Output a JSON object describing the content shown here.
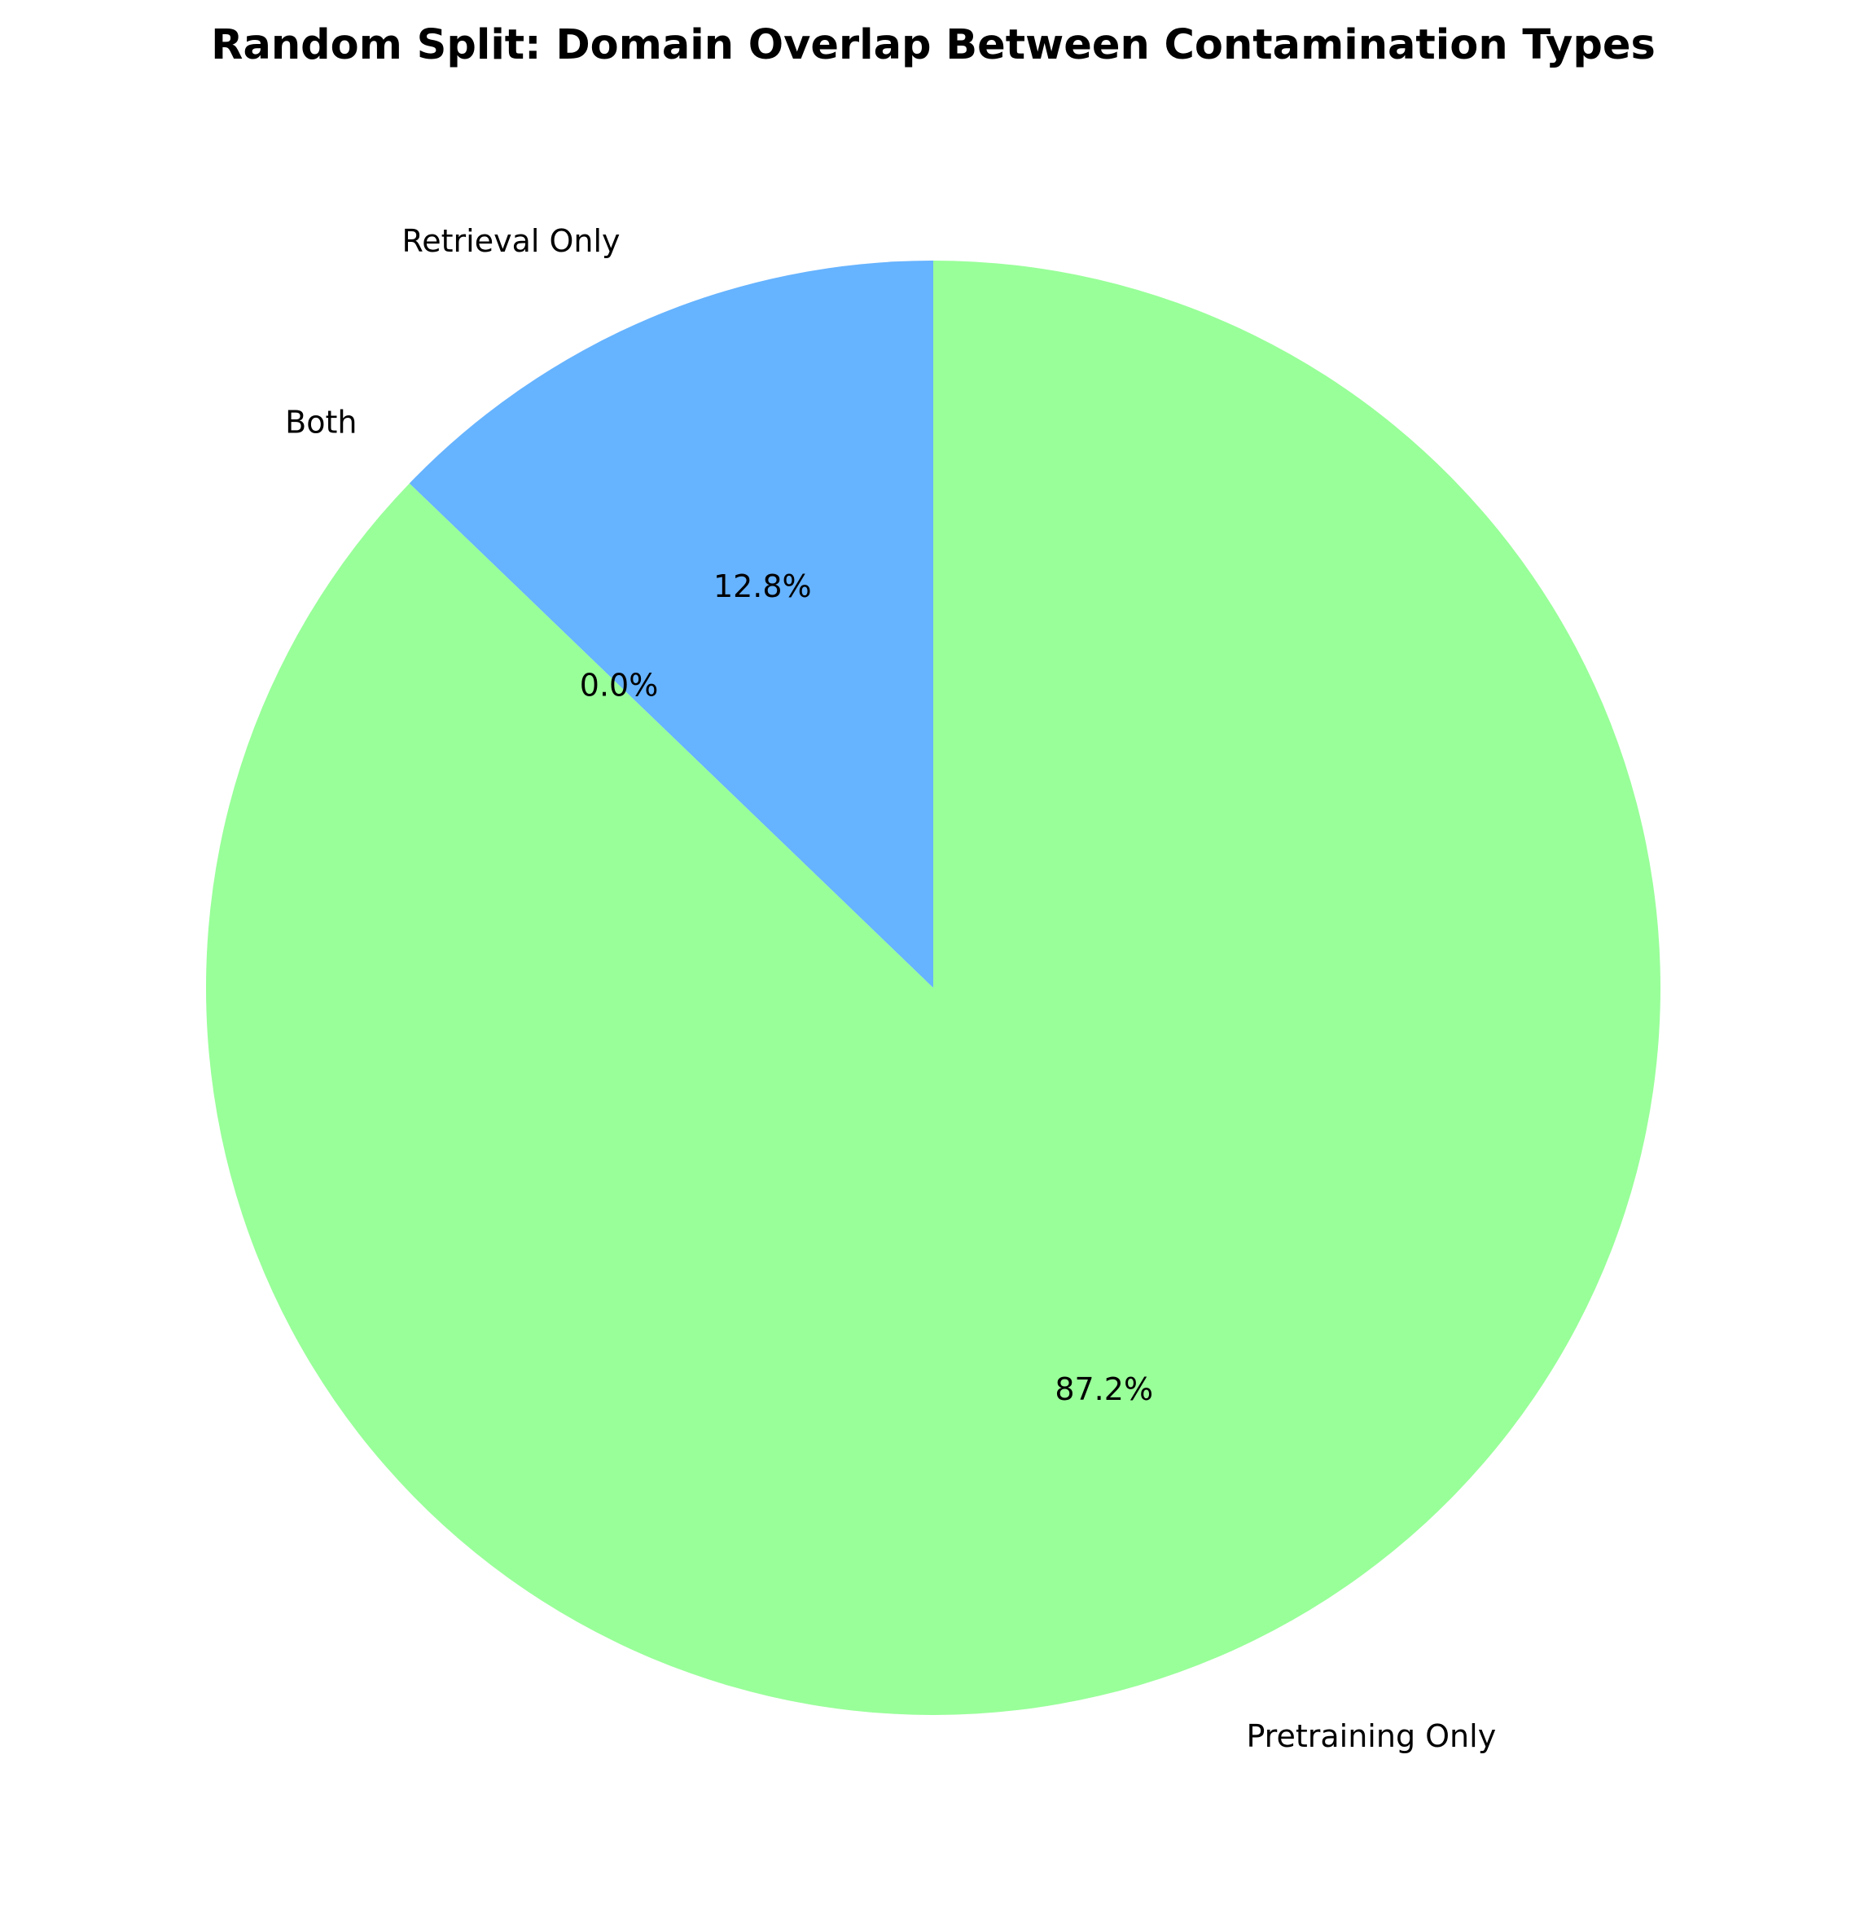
{
  "chart_data": {
    "type": "pie",
    "title": "Random Split: Domain Overlap Between Contamination Types",
    "start_angle_deg": 90,
    "direction": "counterclockwise",
    "slices": [
      {
        "label": "Retrieval Only",
        "value": 12.8,
        "pct_label": "12.8%",
        "color": "#66b3ff"
      },
      {
        "label": "Both",
        "value": 0.0,
        "pct_label": "0.0%",
        "color": "#ff9999"
      },
      {
        "label": "Pretraining Only",
        "value": 87.2,
        "pct_label": "87.2%",
        "color": "#99ff99"
      }
    ]
  }
}
